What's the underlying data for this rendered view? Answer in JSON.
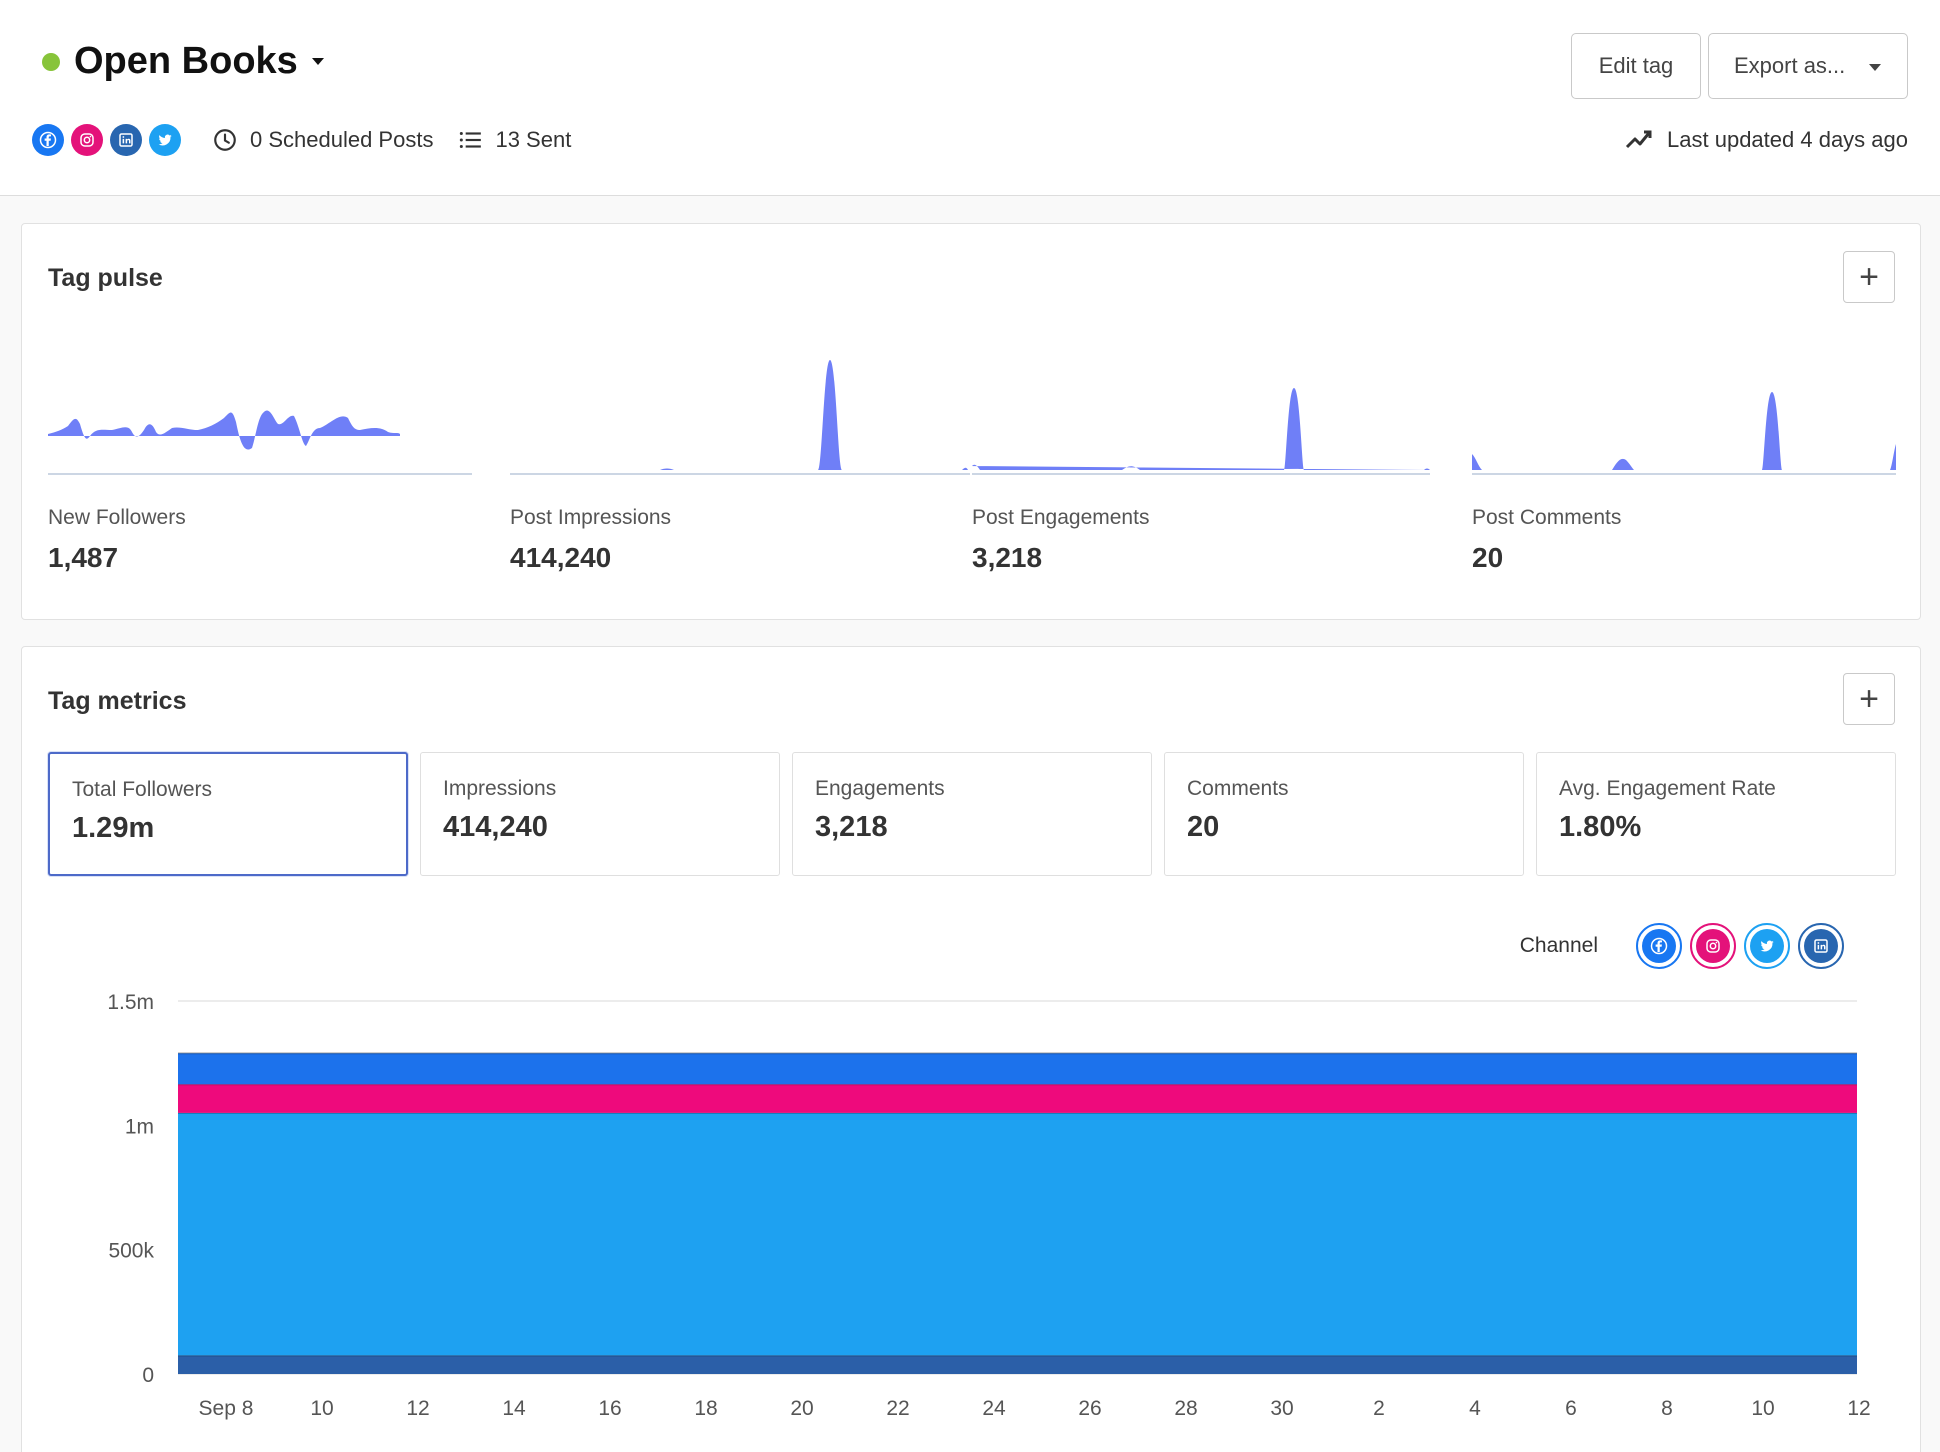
{
  "header": {
    "title": "Open Books",
    "status_color": "#87c43a",
    "edit_tag_label": "Edit tag",
    "export_label": "Export as...",
    "social_icons": [
      "facebook-icon",
      "instagram-icon",
      "linkedin-icon",
      "twitter-icon"
    ],
    "scheduled_posts": "0 Scheduled Posts",
    "sent": "13 Sent",
    "last_updated": "Last updated 4 days ago"
  },
  "pulse": {
    "title": "Tag pulse",
    "add_label": "+",
    "items": [
      {
        "label": "New Followers",
        "value": "1,487"
      },
      {
        "label": "Post Impressions",
        "value": "414,240"
      },
      {
        "label": "Post Engagements",
        "value": "3,218"
      },
      {
        "label": "Post Comments",
        "value": "20"
      }
    ],
    "spark_color": "#6f7ff7"
  },
  "metrics": {
    "title": "Tag metrics",
    "add_label": "+",
    "boxes": [
      {
        "label": "Total Followers",
        "value": "1.29m",
        "active": true
      },
      {
        "label": "Impressions",
        "value": "414,240",
        "active": false
      },
      {
        "label": "Engagements",
        "value": "3,218",
        "active": false
      },
      {
        "label": "Comments",
        "value": "20",
        "active": false
      },
      {
        "label": "Avg. Engagement Rate",
        "value": "1.80%",
        "active": false
      }
    ],
    "channel_label": "Channel",
    "channel_icons": [
      "facebook-icon",
      "instagram-icon",
      "twitter-icon",
      "linkedin-icon"
    ]
  },
  "chart_data": {
    "type": "area",
    "stacked": true,
    "x": [
      "Sep 8",
      "10",
      "12",
      "14",
      "16",
      "18",
      "20",
      "22",
      "24",
      "26",
      "28",
      "30",
      "2",
      "4",
      "6",
      "8",
      "10",
      "12"
    ],
    "yticks": [
      "0",
      "500k",
      "1m",
      "1.5m"
    ],
    "ylim": [
      0,
      1500000
    ],
    "series": [
      {
        "channel": "linkedin",
        "color": "#2b5fa8",
        "values": [
          75000,
          75000,
          75000,
          75000,
          75000,
          75000,
          75000,
          75000,
          75000,
          75000,
          75000,
          75000,
          75000,
          75000,
          75000,
          75000,
          75000,
          75000
        ]
      },
      {
        "channel": "twitter",
        "color": "#1ea1f1",
        "values": [
          975000,
          975000,
          975000,
          975000,
          975000,
          975000,
          975000,
          975000,
          975000,
          975000,
          975000,
          975000,
          975000,
          975000,
          975000,
          975000,
          975000,
          975000
        ]
      },
      {
        "channel": "instagram",
        "color": "#ee0a7c",
        "values": [
          115000,
          115000,
          115000,
          115000,
          115000,
          115000,
          115000,
          115000,
          115000,
          115000,
          115000,
          115000,
          115000,
          115000,
          115000,
          115000,
          115000,
          115000
        ]
      },
      {
        "channel": "facebook",
        "color": "#1c72ec",
        "values": [
          125000,
          125000,
          125000,
          125000,
          125000,
          125000,
          125000,
          125000,
          125000,
          125000,
          125000,
          125000,
          125000,
          125000,
          125000,
          125000,
          125000,
          125000
        ]
      }
    ],
    "grid": "horizontal"
  }
}
